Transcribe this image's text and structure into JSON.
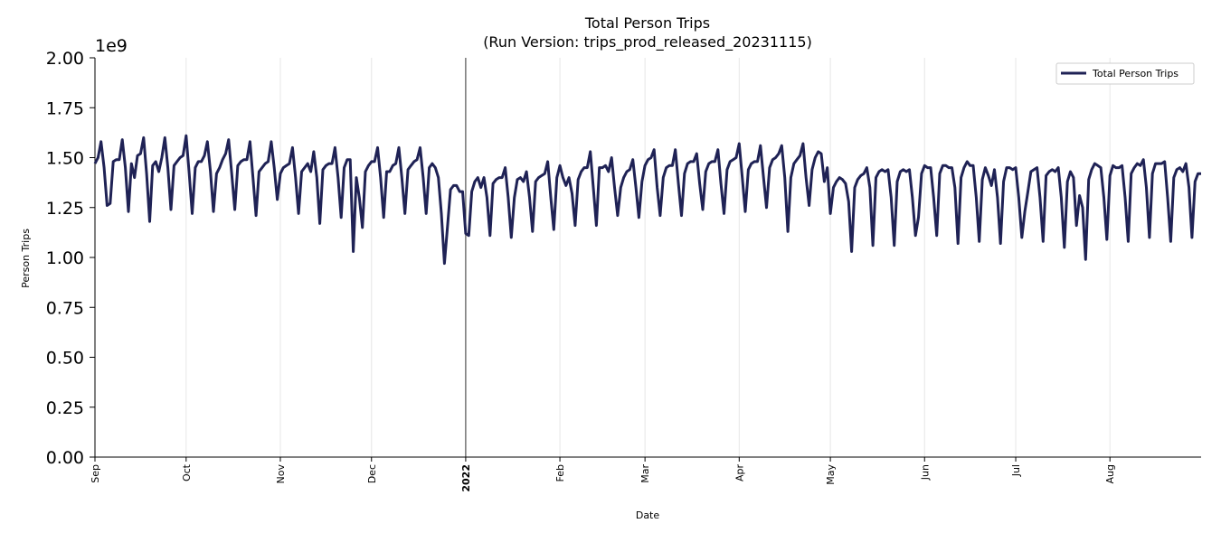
{
  "chart_data": {
    "type": "line",
    "title": "Total Person Trips",
    "subtitle": "(Run Version: trips_prod_released_20231115)",
    "xlabel": "Date",
    "ylabel": "Person Trips",
    "y_offset_label": "1e9",
    "y_multiplier": 1000000000,
    "ylim": [
      0,
      2.0
    ],
    "yticks": [
      "0.00",
      "0.25",
      "0.50",
      "0.75",
      "1.00",
      "1.25",
      "1.50",
      "1.75",
      "2.00"
    ],
    "xlim": [
      "2021-09-01",
      "2022-08-31"
    ],
    "xticks": [
      {
        "date": "2021-09-01",
        "label": "Sep",
        "bold": false
      },
      {
        "date": "2021-10-01",
        "label": "Oct",
        "bold": false
      },
      {
        "date": "2021-11-01",
        "label": "Nov",
        "bold": false
      },
      {
        "date": "2021-12-01",
        "label": "Dec",
        "bold": false
      },
      {
        "date": "2022-01-01",
        "label": "2022",
        "bold": true
      },
      {
        "date": "2022-02-01",
        "label": "Feb",
        "bold": false
      },
      {
        "date": "2022-03-01",
        "label": "Mar",
        "bold": false
      },
      {
        "date": "2022-04-01",
        "label": "Apr",
        "bold": false
      },
      {
        "date": "2022-05-01",
        "label": "May",
        "bold": false
      },
      {
        "date": "2022-06-01",
        "label": "Jun",
        "bold": false
      },
      {
        "date": "2022-07-01",
        "label": "Jul",
        "bold": false
      },
      {
        "date": "2022-08-01",
        "label": "Aug",
        "bold": false
      }
    ],
    "year_marker": "2022-01-01",
    "grid": "vertical-monthly",
    "legend": {
      "placement": "top-right",
      "entries": [
        "Total Person Trips"
      ]
    },
    "series": [
      {
        "name": "Total Person Trips",
        "color": "#1f2255",
        "months": [
          {
            "month": "2021-09",
            "values": [
              1.47,
              1.5,
              1.58,
              1.45,
              1.26,
              1.27,
              1.48,
              1.49,
              1.49,
              1.59,
              1.45,
              1.23,
              1.47,
              1.4,
              1.51,
              1.52,
              1.6,
              1.42,
              1.18,
              1.46,
              1.48,
              1.43,
              1.5,
              1.6,
              1.45,
              1.24,
              1.46,
              1.48,
              1.5,
              1.51
            ]
          },
          {
            "month": "2021-10",
            "values": [
              1.61,
              1.42,
              1.22,
              1.45,
              1.48,
              1.48,
              1.51,
              1.58,
              1.43,
              1.23,
              1.42,
              1.45,
              1.49,
              1.52,
              1.59,
              1.42,
              1.24,
              1.46,
              1.48,
              1.49,
              1.49,
              1.58,
              1.4,
              1.21,
              1.43,
              1.45,
              1.47,
              1.48,
              1.58,
              1.45,
              1.29
            ]
          },
          {
            "month": "2021-11",
            "values": [
              1.42,
              1.45,
              1.46,
              1.47,
              1.55,
              1.4,
              1.22,
              1.43,
              1.45,
              1.47,
              1.43,
              1.53,
              1.4,
              1.17,
              1.44,
              1.46,
              1.47,
              1.47,
              1.55,
              1.4,
              1.2,
              1.45,
              1.49,
              1.49,
              1.03,
              1.4,
              1.3,
              1.15,
              1.43,
              1.46
            ]
          },
          {
            "month": "2021-12",
            "values": [
              1.48,
              1.48,
              1.55,
              1.4,
              1.2,
              1.43,
              1.43,
              1.46,
              1.47,
              1.55,
              1.4,
              1.22,
              1.44,
              1.46,
              1.48,
              1.49,
              1.55,
              1.4,
              1.22,
              1.45,
              1.47,
              1.45,
              1.4,
              1.22,
              0.97,
              1.15,
              1.34,
              1.36,
              1.36,
              1.33,
              1.33
            ]
          },
          {
            "month": "2022-01",
            "values": [
              1.12,
              1.11,
              1.33,
              1.38,
              1.4,
              1.35,
              1.4,
              1.3,
              1.11,
              1.37,
              1.39,
              1.4,
              1.4,
              1.45,
              1.3,
              1.1,
              1.3,
              1.39,
              1.4,
              1.38,
              1.43,
              1.3,
              1.13,
              1.38,
              1.4,
              1.41,
              1.42,
              1.48,
              1.3,
              1.14,
              1.4
            ]
          },
          {
            "month": "2022-02",
            "values": [
              1.46,
              1.4,
              1.36,
              1.4,
              1.32,
              1.16,
              1.39,
              1.43,
              1.45,
              1.45,
              1.53,
              1.35,
              1.16,
              1.45,
              1.45,
              1.46,
              1.43,
              1.5,
              1.35,
              1.21,
              1.35,
              1.4,
              1.43,
              1.44,
              1.49,
              1.35,
              1.2,
              1.38
            ]
          },
          {
            "month": "2022-03",
            "values": [
              1.46,
              1.49,
              1.5,
              1.54,
              1.35,
              1.21,
              1.4,
              1.45,
              1.46,
              1.46,
              1.54,
              1.37,
              1.21,
              1.42,
              1.47,
              1.48,
              1.48,
              1.52,
              1.37,
              1.24,
              1.43,
              1.47,
              1.48,
              1.48,
              1.54,
              1.37,
              1.22,
              1.44,
              1.48,
              1.49,
              1.5
            ]
          },
          {
            "month": "2022-04",
            "values": [
              1.57,
              1.4,
              1.23,
              1.44,
              1.47,
              1.48,
              1.48,
              1.56,
              1.4,
              1.25,
              1.45,
              1.49,
              1.5,
              1.52,
              1.56,
              1.4,
              1.13,
              1.4,
              1.47,
              1.49,
              1.51,
              1.57,
              1.4,
              1.26,
              1.44,
              1.5,
              1.53,
              1.52,
              1.38,
              1.45
            ]
          },
          {
            "month": "2022-05",
            "values": [
              1.22,
              1.35,
              1.38,
              1.4,
              1.39,
              1.37,
              1.28,
              1.03,
              1.35,
              1.39,
              1.41,
              1.42,
              1.45,
              1.35,
              1.06,
              1.4,
              1.43,
              1.44,
              1.43,
              1.44,
              1.3,
              1.06,
              1.38,
              1.43,
              1.44,
              1.43,
              1.44,
              1.3,
              1.11,
              1.2,
              1.42
            ]
          },
          {
            "month": "2022-06",
            "values": [
              1.46,
              1.45,
              1.45,
              1.3,
              1.11,
              1.42,
              1.46,
              1.46,
              1.45,
              1.45,
              1.35,
              1.07,
              1.4,
              1.45,
              1.48,
              1.46,
              1.46,
              1.3,
              1.08,
              1.39,
              1.45,
              1.41,
              1.36,
              1.44,
              1.3,
              1.07,
              1.38,
              1.45,
              1.45,
              1.44
            ]
          },
          {
            "month": "2022-07",
            "values": [
              1.45,
              1.3,
              1.1,
              1.23,
              1.33,
              1.43,
              1.44,
              1.45,
              1.3,
              1.08,
              1.41,
              1.43,
              1.44,
              1.43,
              1.45,
              1.3,
              1.05,
              1.38,
              1.43,
              1.4,
              1.16,
              1.31,
              1.25,
              0.99,
              1.39,
              1.44,
              1.47,
              1.46,
              1.45,
              1.3,
              1.09
            ]
          },
          {
            "month": "2022-08",
            "values": [
              1.41,
              1.46,
              1.45,
              1.45,
              1.46,
              1.3,
              1.08,
              1.42,
              1.45,
              1.47,
              1.46,
              1.49,
              1.35,
              1.1,
              1.42,
              1.47,
              1.47,
              1.47,
              1.48,
              1.3,
              1.08,
              1.4,
              1.44,
              1.45,
              1.43,
              1.47,
              1.35,
              1.1,
              1.38,
              1.42,
              1.42
            ]
          }
        ]
      }
    ]
  }
}
